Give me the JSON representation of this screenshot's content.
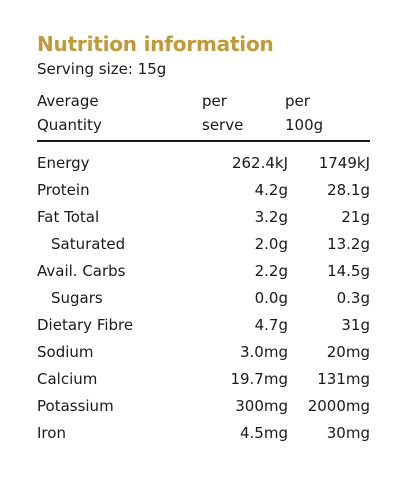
{
  "title": "Nutrition information",
  "serving": "Serving size: 15g",
  "header": {
    "col0_line1": "Average",
    "col0_line2": "Quantity",
    "col1_line1": "per",
    "col1_line2": "serve",
    "col2_line1": "per",
    "col2_line2": "100g"
  },
  "rows": [
    {
      "label": "Energy",
      "per_serve": "262.4kJ",
      "per_100g": "1749kJ",
      "indent": false
    },
    {
      "label": "Protein",
      "per_serve": "4.2g",
      "per_100g": "28.1g",
      "indent": false
    },
    {
      "label": "Fat Total",
      "per_serve": "3.2g",
      "per_100g": "21g",
      "indent": false
    },
    {
      "label": "Saturated",
      "per_serve": "2.0g",
      "per_100g": "13.2g",
      "indent": true
    },
    {
      "label": "Avail. Carbs",
      "per_serve": "2.2g",
      "per_100g": "14.5g",
      "indent": false
    },
    {
      "label": "Sugars",
      "per_serve": "0.0g",
      "per_100g": "0.3g",
      "indent": true
    },
    {
      "label": "Dietary Fibre",
      "per_serve": "4.7g",
      "per_100g": "31g",
      "indent": false
    },
    {
      "label": "Sodium",
      "per_serve": "3.0mg",
      "per_100g": "20mg",
      "indent": false
    },
    {
      "label": "Calcium",
      "per_serve": "19.7mg",
      "per_100g": "131mg",
      "indent": false
    },
    {
      "label": "Potassium",
      "per_serve": "300mg",
      "per_100g": "2000mg",
      "indent": false
    },
    {
      "label": "Iron",
      "per_serve": "4.5mg",
      "per_100g": "30mg",
      "indent": false
    }
  ]
}
